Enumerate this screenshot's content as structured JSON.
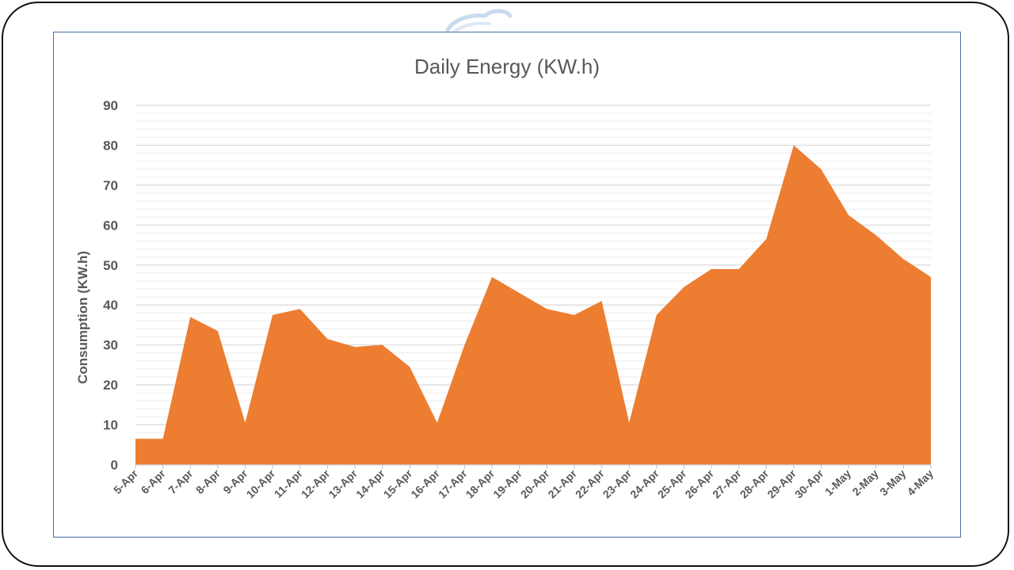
{
  "chart_data": {
    "type": "area",
    "title": "Daily Energy (KW.h)",
    "xlabel": "",
    "ylabel": "Consumption (KW.h)",
    "ylim": [
      0,
      90
    ],
    "yticks": [
      0,
      10,
      20,
      30,
      40,
      50,
      60,
      70,
      80,
      90
    ],
    "grid": true,
    "legend": "none",
    "categories": [
      "5-Apr",
      "6-Apr",
      "7-Apr",
      "8-Apr",
      "9-Apr",
      "10-Apr",
      "11-Apr",
      "12-Apr",
      "13-Apr",
      "14-Apr",
      "15-Apr",
      "16-Apr",
      "17-Apr",
      "18-Apr",
      "19-Apr",
      "20-Apr",
      "21-Apr",
      "22-Apr",
      "23-Apr",
      "24-Apr",
      "25-Apr",
      "26-Apr",
      "27-Apr",
      "28-Apr",
      "29-Apr",
      "30-Apr",
      "1-May",
      "2-May",
      "3-May",
      "4-May"
    ],
    "series": [
      {
        "values": [
          6.5,
          6.5,
          37,
          33.5,
          10.5,
          37.5,
          39,
          31.5,
          29.5,
          30,
          24.5,
          10.5,
          30,
          47,
          43,
          39,
          37.5,
          41,
          10.5,
          37.5,
          44.5,
          49,
          49,
          56.5,
          80,
          74,
          62.5,
          57.5,
          51.5,
          47
        ],
        "color": "#ed7d31"
      }
    ],
    "colors": {
      "area": "#ed7d31",
      "major_grid": "#d9d9d9",
      "minor_grid": "#eeeeee",
      "text": "#595959"
    }
  }
}
